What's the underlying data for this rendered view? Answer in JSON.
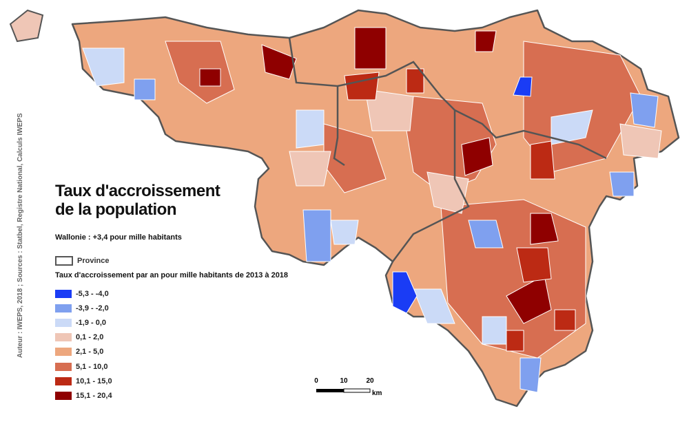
{
  "title": "Taux d'accroissement de la population",
  "subtitle": "Wallonie : +3,4 pour mille habitants",
  "province_label": "Province",
  "legend": {
    "title": "Taux d'accroissement par an pour mille habitants de 2013 à 2018",
    "items": [
      {
        "label": "-5,3 - -4,0",
        "color": "#1a3cf5"
      },
      {
        "label": "-3,9 - -2,0",
        "color": "#7fa0ef"
      },
      {
        "label": "-1,9 - 0,0",
        "color": "#cbdaf7"
      },
      {
        "label": "0,1 - 2,0",
        "color": "#efc6b6"
      },
      {
        "label": "2,1 - 5,0",
        "color": "#eda77e"
      },
      {
        "label": "5,1 - 10,0",
        "color": "#d76e51"
      },
      {
        "label": "10,1 - 15,0",
        "color": "#bc2a14"
      },
      {
        "label": "15,1 - 20,4",
        "color": "#8f0000"
      }
    ]
  },
  "scale_bar": {
    "ticks": [
      0,
      10,
      20
    ],
    "unit": "km"
  },
  "credit": "Auteur : IWEPS, 2018 ; Sources : Statbel, Registre National, Calculs IWEPS"
}
